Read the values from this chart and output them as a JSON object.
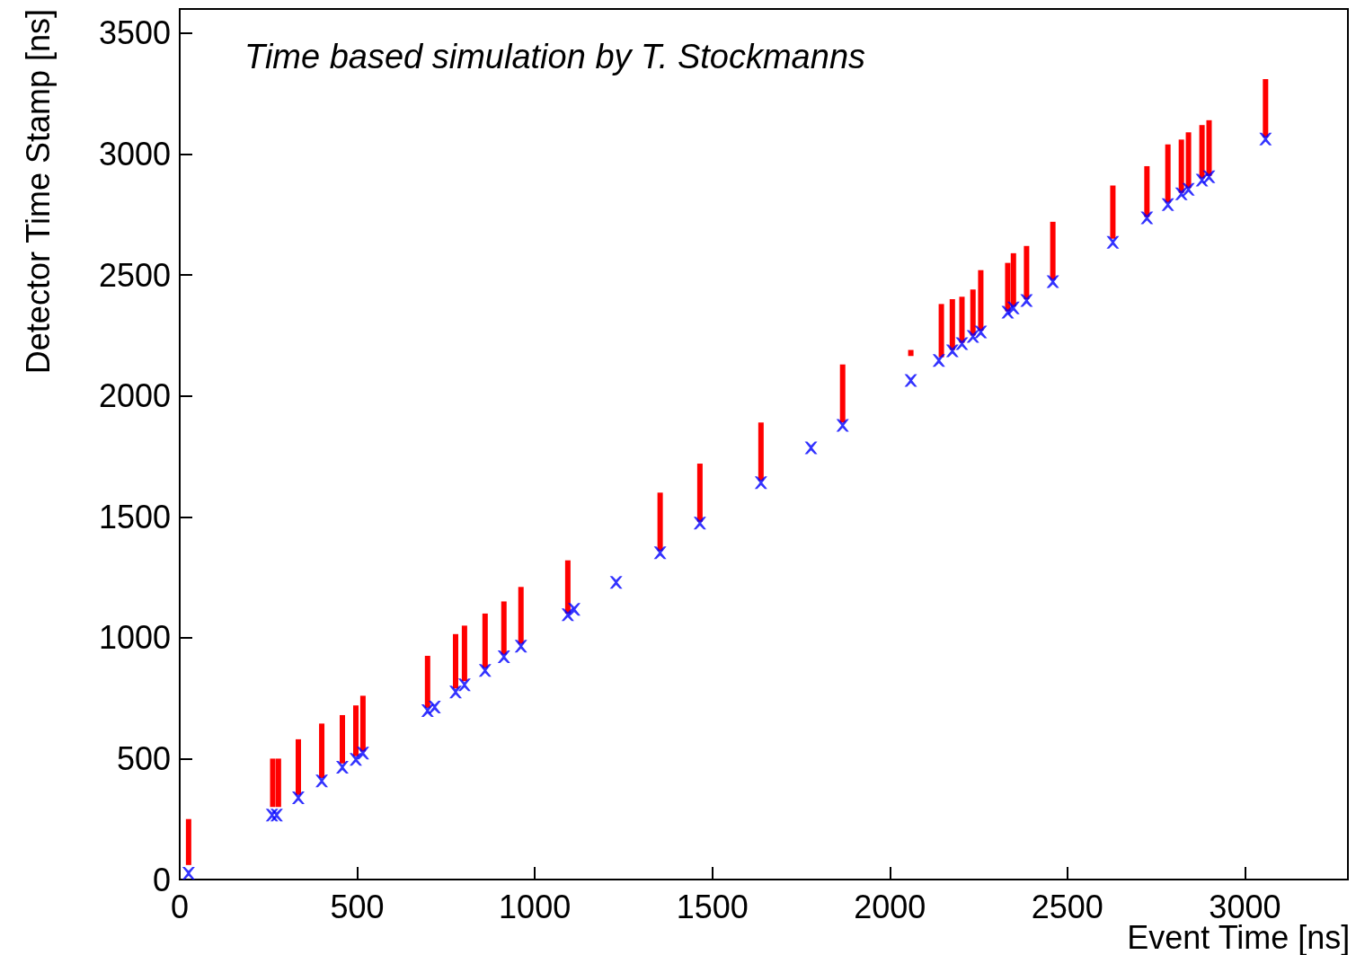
{
  "chart_data": {
    "type": "scatter",
    "xlabel": "Event Time [ns]",
    "ylabel": "Detector Time Stamp [ns]",
    "annotations": [
      "Time based simulation by T. Stockmanns"
    ],
    "xlim": [
      0,
      3290
    ],
    "ylim": [
      0,
      3600
    ],
    "xticks": [
      0,
      500,
      1000,
      1500,
      2000,
      2500,
      3000
    ],
    "yticks": [
      0,
      500,
      1000,
      1500,
      2000,
      2500,
      3000,
      3500
    ],
    "series": [
      {
        "type": "bar",
        "color": "#ff0000",
        "x": [
          25,
          262,
          278,
          334,
          400,
          458,
          496,
          516,
          698,
          777,
          802,
          860,
          913,
          961,
          1093,
          1353,
          1465,
          1637,
          1867,
          2059,
          2145,
          2176,
          2203,
          2234,
          2256,
          2332,
          2348,
          2385,
          2459,
          2628,
          2724,
          2783,
          2821,
          2841,
          2879,
          2899,
          3058
        ],
        "base": [
          60,
          300,
          300,
          350,
          420,
          480,
          510,
          530,
          710,
          790,
          820,
          875,
          930,
          975,
          1100,
          1360,
          1480,
          1650,
          1890,
          2165,
          2160,
          2190,
          2220,
          2250,
          2270,
          2350,
          2370,
          2400,
          2480,
          2650,
          2740,
          2800,
          2840,
          2860,
          2900,
          2910,
          3070
        ],
        "values": [
          190,
          200,
          200,
          230,
          225,
          200,
          210,
          230,
          215,
          225,
          230,
          225,
          220,
          235,
          220,
          240,
          240,
          240,
          240,
          25,
          220,
          210,
          190,
          190,
          250,
          200,
          220,
          220,
          240,
          220,
          210,
          240,
          220,
          230,
          220,
          230,
          240
        ]
      },
      {
        "type": "scatter",
        "color": "#0000ff",
        "marker": "cross",
        "x": [
          25,
          260,
          273,
          334,
          400,
          458,
          496,
          516,
          698,
          718,
          777,
          802,
          860,
          913,
          961,
          1093,
          1111,
          1229,
          1353,
          1465,
          1637,
          1778,
          1867,
          2059,
          2138,
          2176,
          2203,
          2234,
          2256,
          2332,
          2348,
          2385,
          2459,
          2628,
          2724,
          2783,
          2821,
          2841,
          2879,
          2899,
          3058
        ],
        "values": [
          26,
          267,
          267,
          338,
          408,
          464,
          497,
          523,
          698,
          713,
          776,
          805,
          865,
          921,
          965,
          1095,
          1117,
          1229,
          1351,
          1474,
          1641,
          1785,
          1878,
          2064,
          2146,
          2186,
          2216,
          2246,
          2264,
          2346,
          2364,
          2394,
          2472,
          2635,
          2736,
          2791,
          2836,
          2854,
          2892,
          2906,
          3062
        ]
      }
    ]
  }
}
